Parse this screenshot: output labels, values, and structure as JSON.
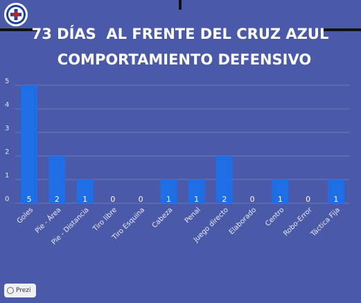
{
  "header": {
    "title_line1": "73 DÍAS  AL FRENTE DEL CRUZ AZUL",
    "title_line2": "COMPORTAMIENTO DEFENSIVO",
    "logo_icon": "cruz-azul-crest-icon"
  },
  "badge": {
    "label": "Prezi",
    "icon": "prezi-icon"
  },
  "colors": {
    "background": "#4a5aa8",
    "bar": "#1e6fe6",
    "grid": "#6b78bd",
    "title": "#ffffff",
    "rule": "#111111"
  },
  "chart_data": {
    "type": "bar",
    "title": "",
    "xlabel": "",
    "ylabel": "",
    "ylim": [
      0,
      5
    ],
    "yticks": [
      0,
      1,
      2,
      3,
      4,
      5
    ],
    "grid": true,
    "categories": [
      "Goles",
      "Pie - Área",
      "Pie - Distancia",
      "Tiro libre",
      "Tiro Esquina",
      "Cabeza",
      "Penal",
      "Juego directo",
      "Elaborado",
      "Centro",
      "Robo-Error",
      "Táctica Fija"
    ],
    "values": [
      5,
      2,
      1,
      0,
      0,
      1,
      1,
      2,
      0,
      1,
      0,
      1
    ],
    "data_labels": [
      "5",
      "2",
      "1",
      "0",
      "0",
      "1",
      "1",
      "2",
      "0",
      "1",
      "0",
      "1"
    ],
    "tick_labels": [
      "0",
      "1",
      "2",
      "3",
      "4",
      "5"
    ]
  }
}
